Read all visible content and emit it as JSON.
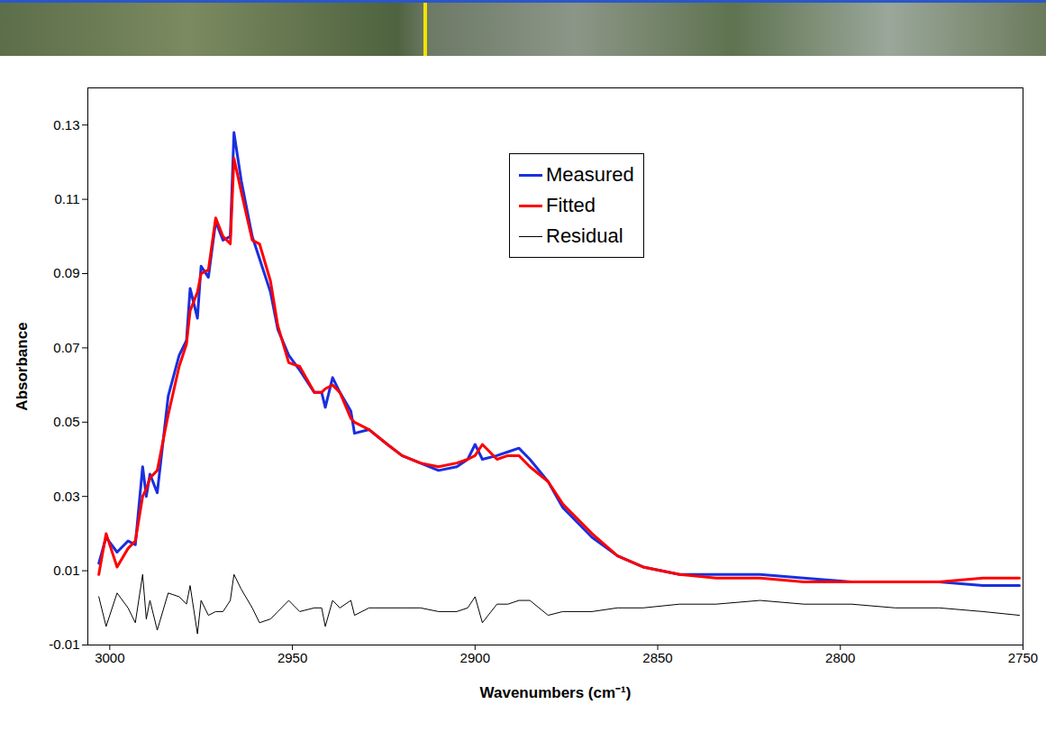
{
  "chart_data": {
    "type": "line",
    "x_label": "Wavenumbers (cm⁻¹)",
    "y_label": "Absorbance",
    "xlim": [
      3006,
      2750
    ],
    "ylim": [
      -0.01,
      0.14
    ],
    "xticks": [
      3000,
      2950,
      2900,
      2850,
      2800,
      2750
    ],
    "yticks": [
      -0.01,
      0.01,
      0.03,
      0.05,
      0.07,
      0.09,
      0.11,
      0.13
    ],
    "grid": false,
    "legend": "top right",
    "x": [
      3003,
      3001,
      2998,
      2995,
      2993,
      2991,
      2990,
      2989,
      2987,
      2984,
      2981,
      2979,
      2978,
      2976,
      2975,
      2973,
      2971,
      2969,
      2967,
      2966,
      2964,
      2961,
      2959,
      2956,
      2954,
      2951,
      2948,
      2944,
      2942,
      2941,
      2939,
      2937,
      2934,
      2933,
      2929,
      2924,
      2920,
      2915,
      2910,
      2905,
      2902,
      2900,
      2898,
      2894,
      2891,
      2888,
      2885,
      2880,
      2876,
      2868,
      2861,
      2854,
      2844,
      2834,
      2822,
      2810,
      2797,
      2785,
      2773,
      2761,
      2751
    ],
    "series": [
      {
        "name": "Measured",
        "color": "#1a2fe0",
        "values": [
          0.012,
          0.019,
          0.015,
          0.018,
          0.017,
          0.038,
          0.03,
          0.036,
          0.031,
          0.057,
          0.068,
          0.072,
          0.086,
          0.078,
          0.092,
          0.089,
          0.104,
          0.099,
          0.1,
          0.128,
          0.115,
          0.1,
          0.094,
          0.085,
          0.075,
          0.068,
          0.064,
          0.058,
          0.058,
          0.054,
          0.062,
          0.058,
          0.053,
          0.047,
          0.048,
          0.044,
          0.041,
          0.039,
          0.037,
          0.038,
          0.04,
          0.044,
          0.04,
          0.041,
          0.042,
          0.043,
          0.04,
          0.034,
          0.027,
          0.019,
          0.014,
          0.011,
          0.009,
          0.009,
          0.009,
          0.008,
          0.007,
          0.007,
          0.007,
          0.006,
          0.006
        ]
      },
      {
        "name": "Fitted",
        "color": "#ff0000",
        "values": [
          0.009,
          0.02,
          0.011,
          0.016,
          0.018,
          0.03,
          0.032,
          0.035,
          0.037,
          0.052,
          0.065,
          0.071,
          0.08,
          0.085,
          0.09,
          0.091,
          0.105,
          0.1,
          0.098,
          0.121,
          0.112,
          0.099,
          0.098,
          0.088,
          0.076,
          0.066,
          0.065,
          0.058,
          0.058,
          0.059,
          0.06,
          0.058,
          0.051,
          0.05,
          0.048,
          0.044,
          0.041,
          0.039,
          0.038,
          0.039,
          0.04,
          0.041,
          0.044,
          0.04,
          0.041,
          0.041,
          0.038,
          0.034,
          0.028,
          0.02,
          0.014,
          0.011,
          0.009,
          0.008,
          0.008,
          0.007,
          0.007,
          0.007,
          0.007,
          0.008,
          0.008
        ]
      },
      {
        "name": "Residual",
        "color": "#000000",
        "values": [
          0.003,
          -0.005,
          0.004,
          0,
          -0.004,
          0.009,
          -0.003,
          0.002,
          -0.006,
          0.004,
          0.003,
          0.001,
          0.006,
          -0.007,
          0.002,
          -0.002,
          -0.001,
          -0.001,
          0.002,
          0.009,
          0.005,
          0,
          -0.004,
          -0.003,
          -0.001,
          0.002,
          -0.001,
          0,
          0,
          -0.005,
          0.002,
          0,
          0.002,
          -0.002,
          0,
          0,
          0,
          0,
          -0.001,
          -0.001,
          0,
          0.003,
          -0.004,
          0.001,
          0.001,
          0.002,
          0.002,
          -0.002,
          -0.001,
          -0.001,
          0,
          0,
          0.001,
          0.001,
          0.002,
          0.001,
          0.001,
          0,
          0,
          -0.001,
          -0.002
        ]
      }
    ]
  }
}
